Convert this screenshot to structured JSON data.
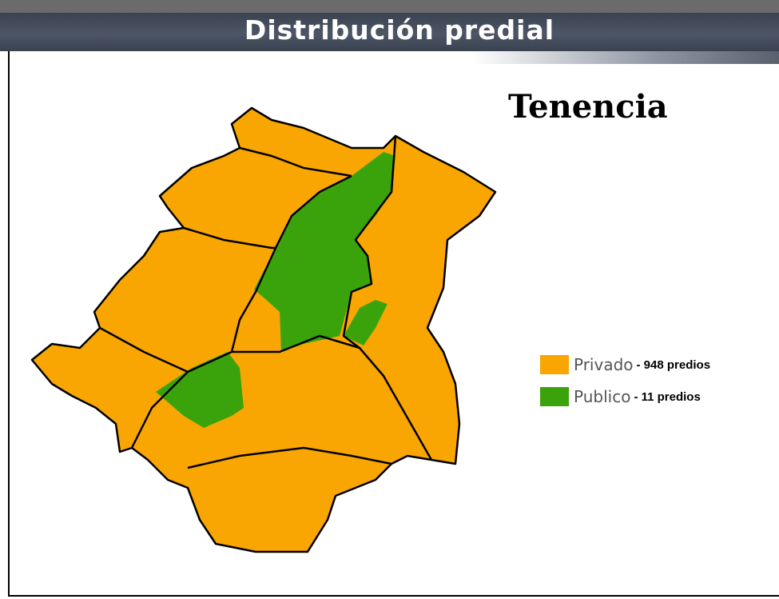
{
  "header": {
    "title": "Distribución predial"
  },
  "map": {
    "title": "Tenencia"
  },
  "legend": {
    "items": [
      {
        "label": "Privado",
        "detail": "- 948 predios",
        "color": "#f9a602"
      },
      {
        "label": "Publico",
        "detail": "- 11  predios",
        "color": "#3aa30b"
      }
    ]
  }
}
